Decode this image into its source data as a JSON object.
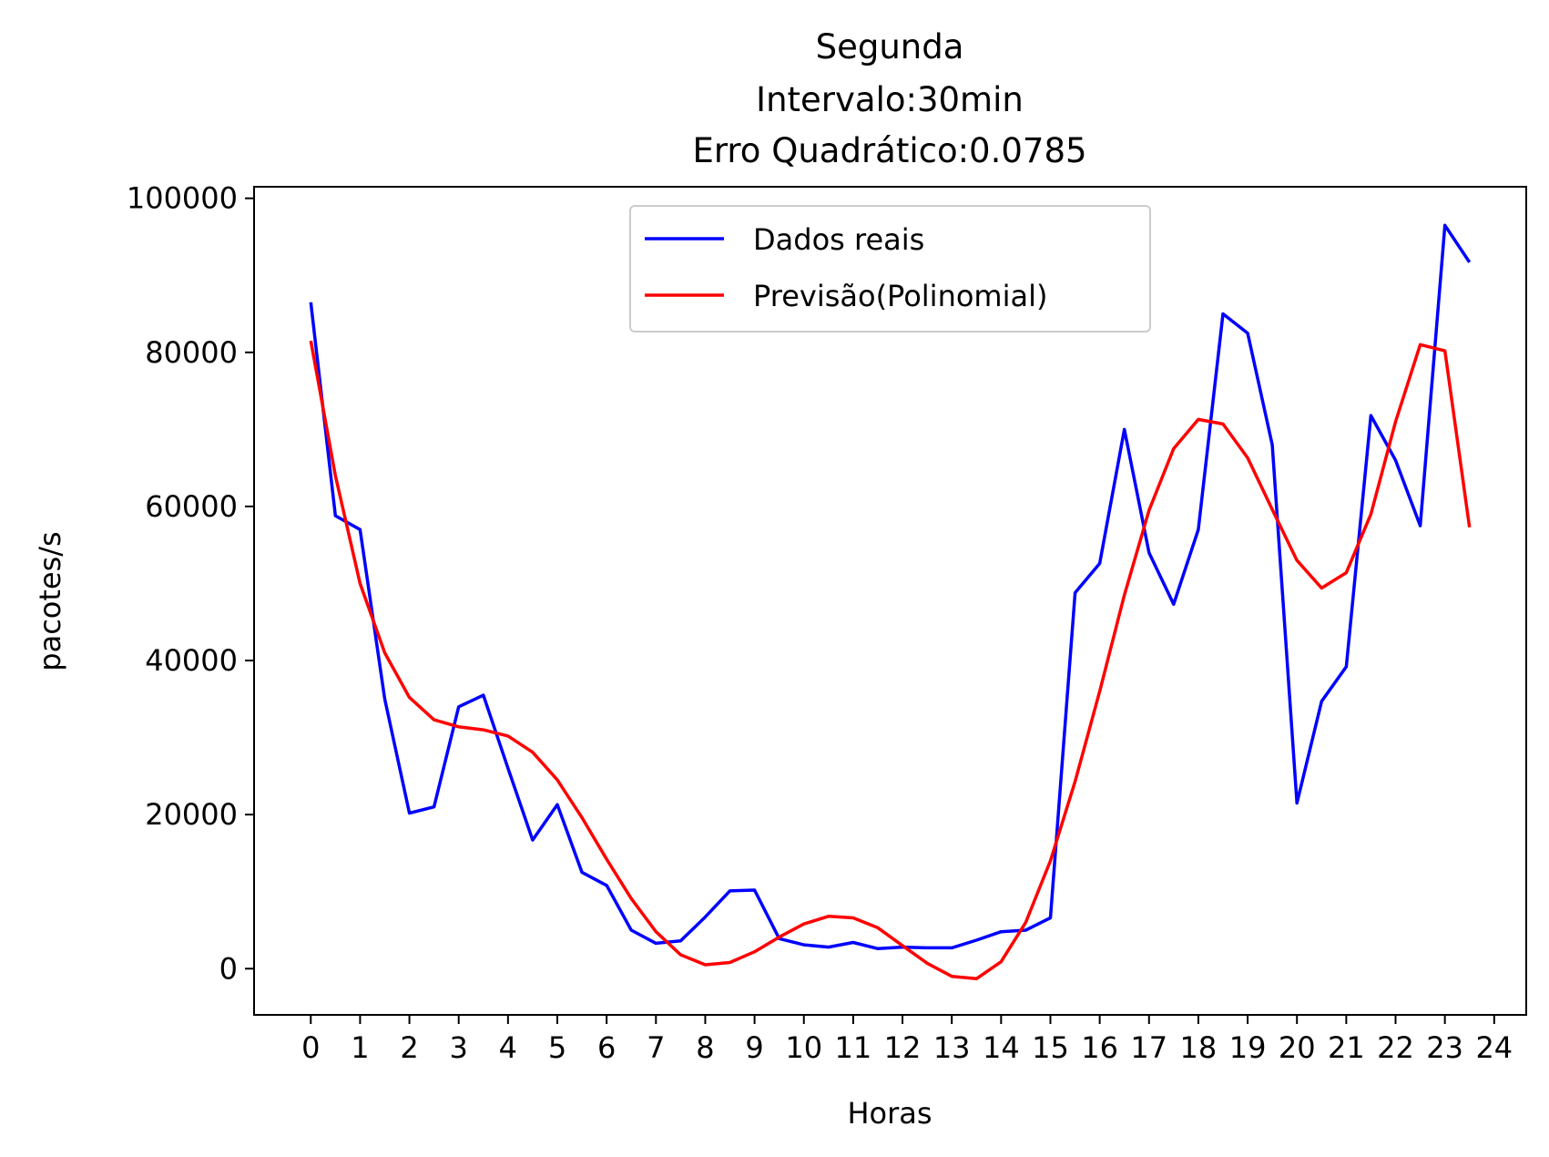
{
  "chart_data": {
    "type": "line",
    "title_lines": [
      "Segunda",
      "Intervalo:30min",
      "Erro Quadrático:0.0785"
    ],
    "xlabel": "Horas",
    "ylabel": "pacotes/s",
    "xlim": [
      -1.15,
      24.65
    ],
    "ylim": [
      -6000,
      101500
    ],
    "x_ticks": [
      0,
      1,
      2,
      3,
      4,
      5,
      6,
      7,
      8,
      9,
      10,
      11,
      12,
      13,
      14,
      15,
      16,
      17,
      18,
      19,
      20,
      21,
      22,
      23,
      24
    ],
    "x_tick_labels": [
      "0",
      "1",
      "2",
      "3",
      "4",
      "5",
      "6",
      "7",
      "8",
      "9",
      "10",
      "11",
      "12",
      "13",
      "14",
      "15",
      "16",
      "17",
      "18",
      "19",
      "20",
      "21",
      "22",
      "23",
      "24"
    ],
    "y_ticks": [
      0,
      20000,
      40000,
      60000,
      80000,
      100000
    ],
    "y_tick_labels": [
      "0",
      "20000",
      "40000",
      "60000",
      "80000",
      "100000"
    ],
    "grid": false,
    "legend": {
      "position": "top-center"
    },
    "x": [
      0,
      0.5,
      1,
      1.5,
      2,
      2.5,
      3,
      3.5,
      4,
      4.5,
      5,
      5.5,
      6,
      6.5,
      7,
      7.5,
      8,
      8.5,
      9,
      9.5,
      10,
      10.5,
      11,
      11.5,
      12,
      12.5,
      13,
      13.5,
      14,
      14.5,
      15,
      15.5,
      16,
      16.5,
      17,
      17.5,
      18,
      18.5,
      19,
      19.5,
      20,
      20.5,
      21,
      21.5,
      22,
      22.5,
      23,
      23.5
    ],
    "series": [
      {
        "name": "Dados reais",
        "color": "#0000ff",
        "values": [
          86500,
          58800,
          57000,
          35000,
          20200,
          21000,
          34000,
          35500,
          26000,
          16700,
          21300,
          12500,
          10800,
          5000,
          3300,
          3600,
          6700,
          10100,
          10200,
          3900,
          3100,
          2800,
          3400,
          2600,
          2800,
          2700,
          2700,
          3700,
          4800,
          5000,
          6600,
          48800,
          52600,
          70000,
          54000,
          47300,
          57000,
          85000,
          82500,
          68000,
          21500,
          34700,
          39200,
          71800,
          66000,
          57500,
          96500,
          91700
        ]
      },
      {
        "name": "Previsão(Polinomial)",
        "color": "#ff0000",
        "values": [
          81500,
          64000,
          50000,
          41000,
          35200,
          32300,
          31400,
          31000,
          30200,
          28100,
          24500,
          19600,
          14200,
          9100,
          4800,
          1800,
          500,
          800,
          2200,
          4100,
          5800,
          6800,
          6600,
          5300,
          3000,
          700,
          -1000,
          -1300,
          900,
          6000,
          14000,
          24300,
          36000,
          48500,
          59500,
          67500,
          71300,
          70700,
          66300,
          59600,
          53000,
          49400,
          51400,
          59000,
          71000,
          81000,
          80200,
          57300
        ]
      }
    ]
  }
}
